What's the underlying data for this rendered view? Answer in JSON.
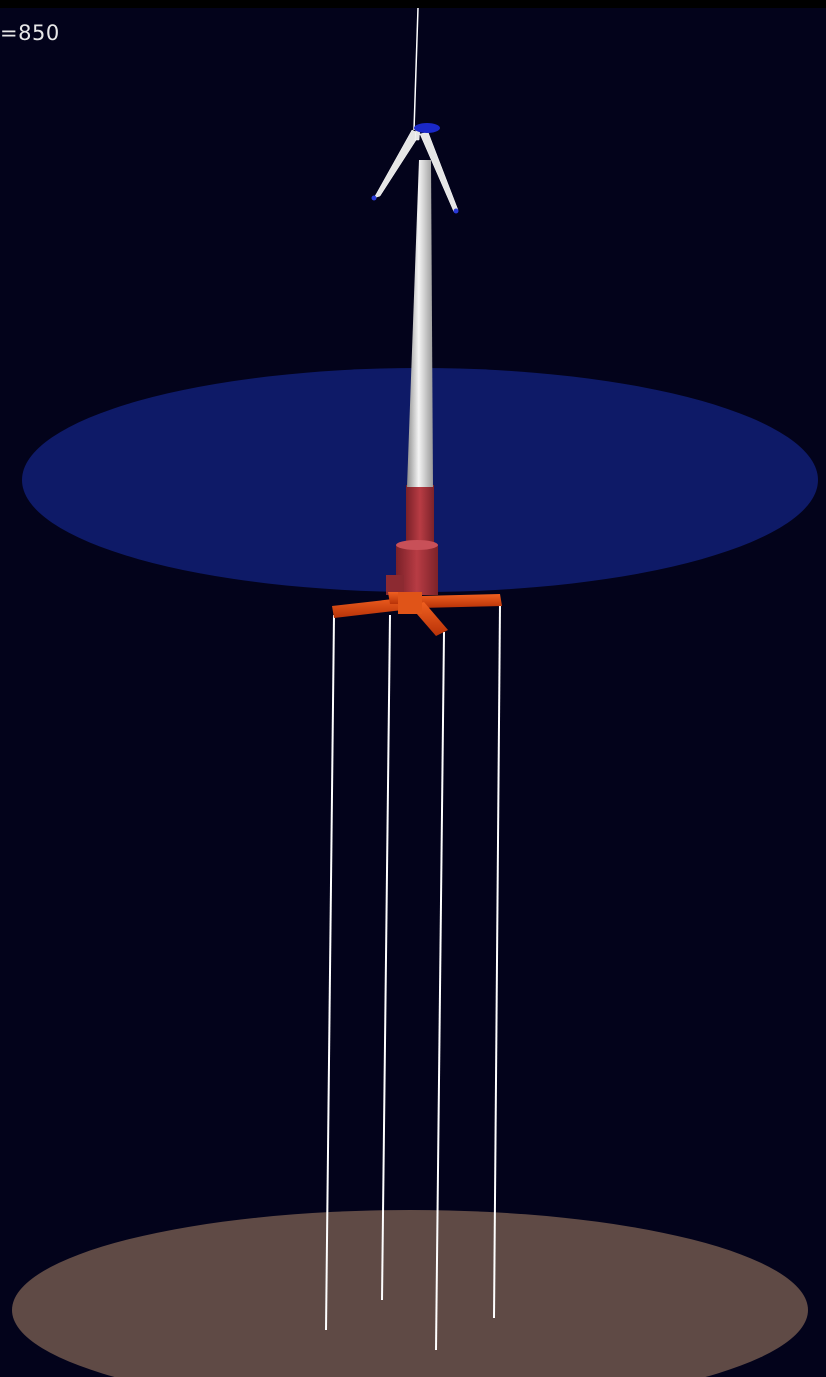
{
  "frame_label": "=850",
  "colors": {
    "background": "#03031b",
    "water_surface": "#0f1c6e",
    "seabed": "#5f4a45",
    "tower_white": "#d8d8d8",
    "spar_red": "#a8333a",
    "pontoon_orange": "#dd4a12",
    "tether_white": "#ffffff",
    "hub_blue": "#1a28c8"
  },
  "scene_objects": [
    "seabed-disk",
    "water-surface-disk",
    "tension-leg-tethers",
    "pontoon-arms",
    "spar-buoy",
    "turbine-tower",
    "rotor-blades",
    "rotor-hub",
    "rotor-axis-line"
  ]
}
